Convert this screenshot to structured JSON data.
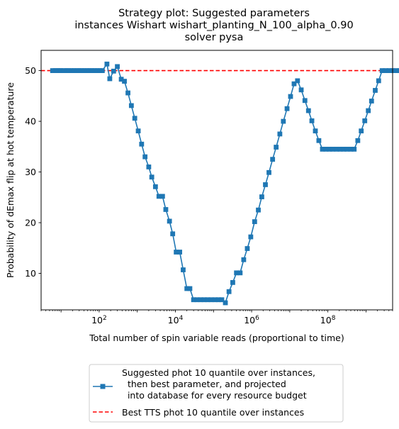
{
  "chart_data": {
    "type": "line",
    "title": [
      "Strategy plot: Suggested parameters",
      "instances Wishart wishart_planting_N_100_alpha_0.90",
      "solver pysa"
    ],
    "xlabel": "Total number of spin variable reads (proportional to time)",
    "ylabel": "Probability of dEmax flip at hot temperature",
    "xscale": "log",
    "xlim": [
      3,
      5000000000
    ],
    "ylim": [
      2.8,
      54
    ],
    "x_ticks": [
      {
        "base": "10",
        "exp": "2",
        "value": 100
      },
      {
        "base": "10",
        "exp": "4",
        "value": 10000
      },
      {
        "base": "10",
        "exp": "6",
        "value": 1000000
      },
      {
        "base": "10",
        "exp": "8",
        "value": 100000000
      }
    ],
    "y_ticks": [
      "10",
      "20",
      "30",
      "40",
      "50"
    ],
    "grid": false,
    "legend_position": "below plot, centered",
    "series": [
      {
        "name": "Suggested phot 10 quantile over instances,\n  then best parameter, and projected\n  into database for every resource budget",
        "color": "#1f77b4",
        "marker": "square",
        "points": [
          [
            6,
            50
          ],
          [
            7,
            50
          ],
          [
            8,
            50
          ],
          [
            9,
            50
          ],
          [
            10,
            50
          ],
          [
            12,
            50
          ],
          [
            14,
            50
          ],
          [
            16,
            50
          ],
          [
            19,
            50
          ],
          [
            22,
            50
          ],
          [
            26,
            50
          ],
          [
            30,
            50
          ],
          [
            35,
            50
          ],
          [
            41,
            50
          ],
          [
            48,
            50
          ],
          [
            56,
            50
          ],
          [
            65,
            50
          ],
          [
            76,
            50
          ],
          [
            89,
            50
          ],
          [
            104,
            50
          ],
          [
            121,
            50
          ],
          [
            160,
            51.3
          ],
          [
            190,
            48.4
          ],
          [
            240,
            49.9
          ],
          [
            300,
            50.8
          ],
          [
            380,
            48.3
          ],
          [
            460,
            47.9
          ],
          [
            570,
            45.6
          ],
          [
            700,
            43.1
          ],
          [
            860,
            40.6
          ],
          [
            1060,
            38.1
          ],
          [
            1300,
            35.5
          ],
          [
            1600,
            33
          ],
          [
            2000,
            31
          ],
          [
            2400,
            29
          ],
          [
            3000,
            27.1
          ],
          [
            3700,
            25.2
          ],
          [
            4600,
            25.2
          ],
          [
            5600,
            22.6
          ],
          [
            7000,
            20.3
          ],
          [
            8500,
            17.8
          ],
          [
            10500,
            14.2
          ],
          [
            13000,
            14.2
          ],
          [
            16000,
            10.7
          ],
          [
            20000,
            7
          ],
          [
            24000,
            7
          ],
          [
            30000,
            4.8
          ],
          [
            37000,
            4.8
          ],
          [
            46000,
            4.8
          ],
          [
            57000,
            4.8
          ],
          [
            70000,
            4.8
          ],
          [
            87000,
            4.8
          ],
          [
            110000,
            4.8
          ],
          [
            135000,
            4.8
          ],
          [
            165000,
            4.8
          ],
          [
            205000,
            4.2
          ],
          [
            255000,
            6.4
          ],
          [
            320000,
            8.2
          ],
          [
            400000,
            10.1
          ],
          [
            500000,
            10.1
          ],
          [
            620000,
            12.7
          ],
          [
            770000,
            14.9
          ],
          [
            950000,
            17.2
          ],
          [
            1200000,
            20.2
          ],
          [
            1500000,
            22.5
          ],
          [
            1850000,
            25.1
          ],
          [
            2300000,
            27.5
          ],
          [
            2850000,
            29.9
          ],
          [
            3550000,
            32.5
          ],
          [
            4400000,
            34.9
          ],
          [
            5500000,
            37.5
          ],
          [
            6800000,
            40
          ],
          [
            8500000,
            42.5
          ],
          [
            10500000,
            44.9
          ],
          [
            13000000,
            47.4
          ],
          [
            16000000,
            48
          ],
          [
            20000000,
            46.2
          ],
          [
            25000000,
            44.1
          ],
          [
            31000000,
            42.1
          ],
          [
            38000000,
            40.1
          ],
          [
            47000000,
            38.1
          ],
          [
            58000000,
            36.2
          ],
          [
            72000000,
            34.5
          ],
          [
            89000000,
            34.5
          ],
          [
            110000000,
            34.5
          ],
          [
            135000000,
            34.5
          ],
          [
            170000000,
            34.5
          ],
          [
            210000000,
            34.5
          ],
          [
            260000000,
            34.5
          ],
          [
            320000000,
            34.5
          ],
          [
            400000000,
            34.5
          ],
          [
            490000000,
            34.5
          ],
          [
            610000000,
            36.2
          ],
          [
            750000000,
            38.1
          ],
          [
            930000000,
            40.1
          ],
          [
            1150000000,
            42.1
          ],
          [
            1400000000,
            44
          ],
          [
            1750000000,
            46.1
          ],
          [
            2150000000,
            48
          ],
          [
            2650000000,
            50
          ],
          [
            3300000000,
            50
          ],
          [
            4100000000,
            50
          ],
          [
            5000000000,
            50
          ],
          [
            6200000000,
            50
          ],
          [
            7700000000,
            50
          ],
          [
            9500000000,
            50
          ]
        ]
      },
      {
        "name": "Best TTS phot 10 quantile over instances",
        "color": "#ff0000",
        "style": "dashed",
        "y": 50
      }
    ]
  }
}
